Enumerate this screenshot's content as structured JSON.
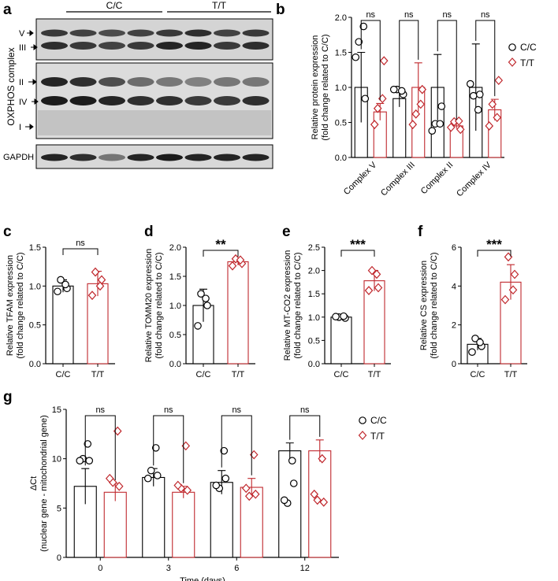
{
  "colors": {
    "cc": "#000000",
    "tt": "#c0282d"
  },
  "panels": {
    "a": {
      "letter": "a",
      "groups": [
        "C/C",
        "T/T"
      ],
      "ylabel": "OXPHOS complex",
      "bands": [
        "V",
        "III",
        "II",
        "IV",
        "I"
      ],
      "loading": "GAPDH"
    },
    "b": {
      "letter": "b"
    },
    "c": {
      "letter": "c"
    },
    "d": {
      "letter": "d"
    },
    "e": {
      "letter": "e"
    },
    "f": {
      "letter": "f"
    },
    "g": {
      "letter": "g"
    }
  },
  "chart_data": [
    {
      "id": "b",
      "type": "bar",
      "ylabel": "Relative protein expression (fold change related to C/C)",
      "ylim": [
        0,
        2.0
      ],
      "yticks": [
        "0.0",
        "0.5",
        "1.0",
        "1.5",
        "2.0"
      ],
      "categories": [
        "Complex V",
        "Complex III",
        "Complex II",
        "Complex IV"
      ],
      "legend": {
        "position": "right",
        "entries": [
          "C/C",
          "T/T"
        ]
      },
      "series": [
        {
          "name": "C/C",
          "values": [
            1.0,
            0.84,
            1.0,
            1.0
          ],
          "sd": [
            0.5,
            0.12,
            0.47,
            0.62
          ],
          "points": [
            [
              1.65,
              0.97,
              0.48,
              0.88
            ],
            [
              0.84,
              0.9,
              0.73,
              0.9
            ],
            [
              1.43,
              0.97,
              0.38,
              1.05
            ],
            [
              1.87,
              0.95,
              0.48,
              0.68
            ]
          ]
        },
        {
          "name": "T/T",
          "values": [
            0.65,
            1.0,
            0.45,
            0.68
          ],
          "sd": [
            0.12,
            0.35,
            0.04,
            0.15
          ],
          "points": [
            [
              0.7,
              0.62,
              0.51,
              0.76
            ],
            [
              1.38,
              0.97,
              0.4,
              1.1
            ],
            [
              0.47,
              0.47,
              0.43,
              0.45
            ],
            [
              0.84,
              0.76,
              0.52,
              0.57
            ]
          ]
        }
      ],
      "annotations": [
        "ns",
        "ns",
        "ns",
        "ns"
      ]
    },
    {
      "id": "c",
      "type": "bar",
      "ylabel": "Relative TFAM expression (fold change related to C/C)",
      "ylim": [
        0,
        1.5
      ],
      "yticks": [
        "0.0",
        "0.5",
        "1.0",
        "1.5"
      ],
      "categories": [
        "C/C",
        "T/T"
      ],
      "values": [
        1.0,
        1.03
      ],
      "sd": [
        0.08,
        0.16
      ],
      "points": [
        [
          1.08,
          0.97,
          0.93,
          1.02
        ],
        [
          1.18,
          1.08,
          0.88,
          1.0
        ]
      ],
      "annotation": "ns"
    },
    {
      "id": "d",
      "type": "bar",
      "ylabel": "Relative TOMM20 expression (fold change related to C/C)",
      "ylim": [
        0,
        2.0
      ],
      "yticks": [
        "0.0",
        "0.5",
        "1.0",
        "1.5",
        "2.0"
      ],
      "categories": [
        "C/C",
        "T/T"
      ],
      "values": [
        1.0,
        1.75
      ],
      "sd": [
        0.28,
        0.06
      ],
      "points": [
        [
          1.2,
          1.0,
          0.65,
          1.12
        ],
        [
          1.8,
          1.72,
          1.68,
          1.78
        ]
      ],
      "annotation": "**"
    },
    {
      "id": "e",
      "type": "bar",
      "ylabel": "Relative MT-CO2 expression (fold change related to C/C)",
      "ylim": [
        0,
        2.5
      ],
      "yticks": [
        "0.0",
        "0.5",
        "1.0",
        "1.5",
        "2.0",
        "2.5"
      ],
      "categories": [
        "C/C",
        "T/T"
      ],
      "values": [
        1.0,
        1.78
      ],
      "sd": [
        0.03,
        0.22
      ],
      "points": [
        [
          1.0,
          0.98,
          1.01,
          1.02
        ],
        [
          2.0,
          1.63,
          1.57,
          1.92
        ]
      ],
      "annotation": "***"
    },
    {
      "id": "f",
      "type": "bar",
      "ylabel": "Relative CS expression (fold change related to C/C)",
      "ylim": [
        0,
        6
      ],
      "yticks": [
        "0",
        "2",
        "4",
        "6"
      ],
      "categories": [
        "C/C",
        "T/T"
      ],
      "values": [
        1.0,
        4.2
      ],
      "sd": [
        0.3,
        0.9
      ],
      "points": [
        [
          1.3,
          0.9,
          0.6,
          1.1
        ],
        [
          5.5,
          4.6,
          3.3,
          3.8
        ]
      ],
      "annotation": "***"
    },
    {
      "id": "g",
      "type": "bar",
      "ylabel": "ΔCt (nuclear gene - mitochondrial gene)",
      "xlabel": "Time (days)",
      "ylim": [
        0,
        15
      ],
      "yticks": [
        "0",
        "5",
        "10",
        "15"
      ],
      "categories": [
        "0",
        "3",
        "6",
        "12"
      ],
      "legend": {
        "position": "top-right",
        "entries": [
          "C/C",
          "T/T"
        ]
      },
      "series": [
        {
          "name": "C/C",
          "values": [
            7.2,
            8.1,
            7.6,
            10.8
          ],
          "sd": [
            1.8,
            0.9,
            1.2,
            0.8
          ],
          "points": [
            [
              10.0,
              8.8,
              7.0,
              5.5,
              5.0
            ],
            [
              9.8,
              8.3,
              8.0,
              7.5,
              7.0
            ],
            [
              9.8,
              8.0,
              7.3,
              5.8,
              5.4
            ],
            [
              11.5,
              11.1,
              10.8,
              9.8,
              9.7
            ]
          ]
        },
        {
          "name": "T/T",
          "values": [
            6.6,
            6.6,
            7.1,
            10.8
          ],
          "sd": [
            0.9,
            0.6,
            0.9,
            1.1
          ],
          "points": [
            [
              7.6,
              7.0,
              6.2,
              5.8,
              5.5
            ],
            [
              7.2,
              6.8,
              6.4,
              5.6,
              5.5
            ],
            [
              8.0,
              7.3,
              7.0,
              6.4,
              6.0
            ],
            [
              12.8,
              11.3,
              10.4,
              10.0,
              9.5
            ]
          ]
        }
      ],
      "annotations": [
        "ns",
        "ns",
        "ns",
        "ns"
      ]
    }
  ]
}
